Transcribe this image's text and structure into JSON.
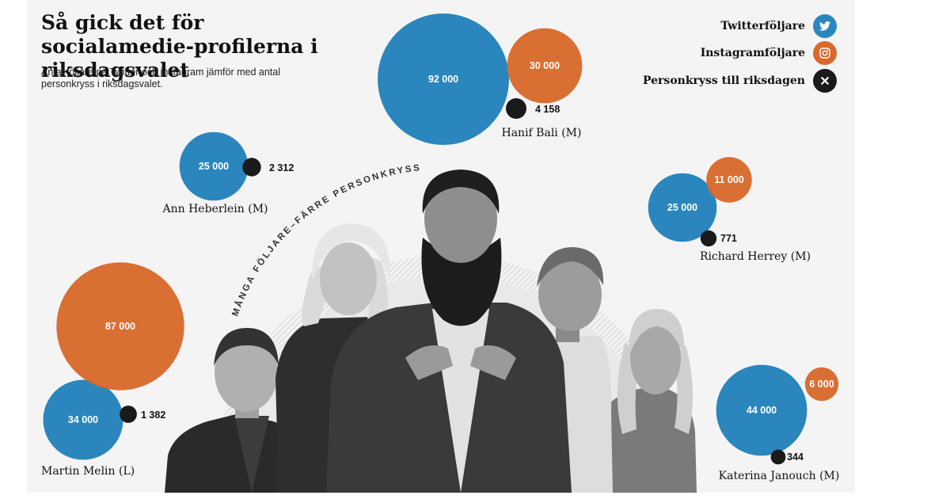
{
  "title": "Så gick det för socialamedie-profilerna i riksdagsvalet",
  "subtitle": "Antal följare på Twitter och instagram jämför med antal personkryss i riksdagsvalet.",
  "arc_label": "MÅNGA FÖLJARE–FÄRRE PERSONKRYSS",
  "legend": [
    {
      "label": "Twitterföljare",
      "color": "#2a86bd",
      "icon": "twitter-bird-icon"
    },
    {
      "label": "Instagramföljare",
      "color": "#d9692b",
      "icon": "instagram-icon"
    },
    {
      "label": "Personkryss till riksdagen",
      "color": "#1a1a1a",
      "icon": "cross-icon"
    }
  ],
  "chart_data": {
    "type": "bubble",
    "title": "Så gick det för socialamedie-profilerna i riksdagsvalet",
    "subtitle": "Antal följare på Twitter och instagram jämför med antal personkryss i riksdagsvalet.",
    "series": [
      {
        "name": "Twitterföljare",
        "color": "#2a86bd"
      },
      {
        "name": "Instagramföljare",
        "color": "#d9692b"
      },
      {
        "name": "Personkryss till riksdagen",
        "color": "#1a1a1a"
      }
    ],
    "people": [
      {
        "name": "Hanif Bali (M)",
        "twitter": 92000,
        "twitter_label": "92 000",
        "instagram": 30000,
        "instagram_label": "30 000",
        "votes": 4158,
        "votes_label": "4 158"
      },
      {
        "name": "Ann Heberlein  (M)",
        "twitter": 25000,
        "twitter_label": "25 000",
        "instagram": null,
        "instagram_label": "",
        "votes": 2312,
        "votes_label": "2 312"
      },
      {
        "name": "Richard Herrey (M)",
        "twitter": 25000,
        "twitter_label": "25 000",
        "instagram": 11000,
        "instagram_label": "11 000",
        "votes": 771,
        "votes_label": "771"
      },
      {
        "name": "Martin Melin (L)",
        "twitter": 34000,
        "twitter_label": "34 000",
        "instagram": 87000,
        "instagram_label": "87 000",
        "votes": 1382,
        "votes_label": "1 382"
      },
      {
        "name": "Katerina  Janouch (M)",
        "twitter": 44000,
        "twitter_label": "44 000",
        "instagram": 6000,
        "instagram_label": "6 000",
        "votes": 344,
        "votes_label": "344"
      }
    ]
  }
}
